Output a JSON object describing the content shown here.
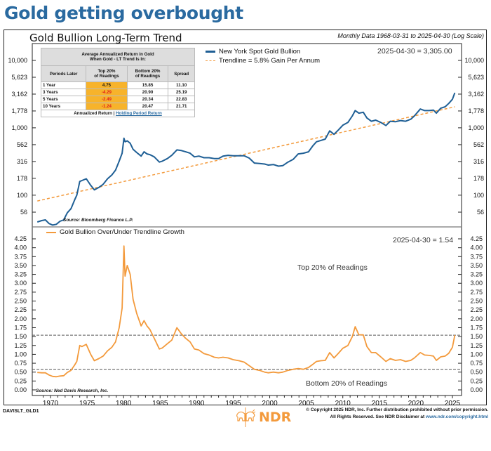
{
  "headline": "Gold getting overbought",
  "chart_title": "Gold Bullion Long-Term Trend",
  "subtitle": "Monthly Data 1968-03-31 to 2025-04-30 (Log Scale)",
  "colors": {
    "headline": "#2a6aa0",
    "gold_line": "#1f5f95",
    "trendline": "#f39a3c",
    "ratio_line": "#f39a3c",
    "highlight_cell": "#f7b32b",
    "negative_text": "#e0201a",
    "threshold_line": "#555555"
  },
  "returns_table": {
    "title_line1": "Average Annualized Return in Gold",
    "title_line2": "When Gold - LT Trend Is In:",
    "columns": [
      "Periods Later",
      "Top 20% of Readings",
      "Bottom 20% of Readings",
      "Spread"
    ],
    "col1_line1": "Top 20%",
    "col1_line2": "of Readings",
    "col2_line1": "Bottom 20%",
    "col2_line2": "of Readings",
    "rows": [
      {
        "period": "1 Year",
        "top": "4.75",
        "bottom": "15.85",
        "spread": "11.10"
      },
      {
        "period": "3 Years",
        "top": "-4.29",
        "bottom": "20.90",
        "spread": "25.19"
      },
      {
        "period": "5 Years",
        "top": "-2.49",
        "bottom": "20.34",
        "spread": "22.83"
      },
      {
        "period": "10 Years",
        "top": "-1.24",
        "bottom": "20.47",
        "spread": "21.71"
      }
    ],
    "footer_text": "Annualized Return | ",
    "footer_link": "Holding Period Return"
  },
  "legend_upper": {
    "series1": "New York Spot Gold Bullion",
    "series2": "Trendline = 5.8% Gain Per Annum"
  },
  "upper_latest": "2025-04-30 = 3,305.00",
  "upper_source": "Source: Bloomberg Finance L.P.",
  "legend_lower": "Gold Bullion Over/Under Trendline Growth",
  "lower_latest": "2025-04-30 = 1.54",
  "top_band_label": "Top 20% of Readings",
  "bottom_band_label": "Bottom 20% of Readings",
  "lower_source": "Source: Ned Davis Research, Inc.",
  "footer_id": "DAVISLT_GLD1",
  "copyright_line1": "© Copyright 2025 NDR, Inc. Further distribution prohibited without prior permission.",
  "copyright_line2": "All Rights Reserved. See NDR Disclaimer at ",
  "copyright_link": "www.ndr.com/copyright.html",
  "logo_text": "NDR",
  "chart_data": [
    {
      "type": "line",
      "title": "Gold Bullion Long-Term Trend",
      "yscale": "log",
      "yticks": [
        56,
        100,
        178,
        316,
        562,
        1000,
        1778,
        3162,
        5623,
        10000
      ],
      "ytick_labels": [
        "56",
        "100",
        "178",
        "316",
        "562",
        "1,000",
        "1,778",
        "3,162",
        "5,623",
        "10,000"
      ],
      "ylim": [
        42,
        14000
      ],
      "xlim": [
        1968.2,
        2025.4
      ],
      "xticks": [
        1970,
        1975,
        1980,
        1985,
        1990,
        1995,
        2000,
        2005,
        2010,
        2015,
        2020,
        2025
      ],
      "series": [
        {
          "name": "New York Spot Gold Bullion",
          "x": [
            1968.2,
            1968.8,
            1969.3,
            1969.8,
            1970.3,
            1970.8,
            1971.3,
            1971.8,
            1972.3,
            1972.8,
            1973.3,
            1973.6,
            1974.0,
            1974.3,
            1974.9,
            1975.5,
            1976.0,
            1976.6,
            1977.2,
            1977.8,
            1978.4,
            1978.9,
            1979.4,
            1979.8,
            1980.05,
            1980.2,
            1980.5,
            1980.9,
            1981.3,
            1981.8,
            1982.4,
            1982.8,
            1983.2,
            1983.6,
            1984.2,
            1984.9,
            1985.3,
            1986.0,
            1986.6,
            1987.3,
            1987.9,
            1988.5,
            1989.1,
            1989.7,
            1990.3,
            1991.0,
            1991.7,
            1992.4,
            1993.0,
            1993.6,
            1994.3,
            1995.0,
            1995.8,
            1996.5,
            1997.2,
            1997.9,
            1998.6,
            1999.3,
            1999.8,
            2000.5,
            2001.2,
            2001.8,
            2002.5,
            2003.2,
            2003.9,
            2004.6,
            2005.3,
            2005.9,
            2006.4,
            2007.0,
            2007.6,
            2008.2,
            2008.8,
            2009.4,
            2010.0,
            2010.7,
            2011.3,
            2011.7,
            2012.2,
            2012.8,
            2013.3,
            2013.9,
            2014.5,
            2015.2,
            2015.9,
            2016.5,
            2017.2,
            2017.9,
            2018.6,
            2019.3,
            2019.8,
            2020.6,
            2021.2,
            2021.8,
            2022.4,
            2022.8,
            2023.4,
            2024.0,
            2024.5,
            2025.0,
            2025.33
          ],
          "values": [
            40,
            42,
            43,
            38,
            36,
            37,
            41,
            43,
            55,
            63,
            85,
            100,
            160,
            165,
            175,
            140,
            120,
            130,
            145,
            175,
            200,
            235,
            320,
            420,
            700,
            620,
            640,
            590,
            480,
            430,
            380,
            440,
            410,
            400,
            370,
            310,
            320,
            350,
            390,
            470,
            460,
            440,
            420,
            370,
            380,
            360,
            360,
            350,
            350,
            380,
            390,
            385,
            385,
            385,
            355,
            300,
            295,
            290,
            280,
            285,
            270,
            275,
            310,
            340,
            410,
            420,
            440,
            540,
            620,
            650,
            680,
            900,
            800,
            930,
            1090,
            1200,
            1500,
            1800,
            1650,
            1700,
            1400,
            1250,
            1300,
            1200,
            1080,
            1250,
            1230,
            1280,
            1250,
            1340,
            1500,
            1900,
            1800,
            1800,
            1830,
            1650,
            1950,
            2050,
            2300,
            2650,
            3305
          ]
        },
        {
          "name": "Trendline = 5.8% Gain Per Annum",
          "style": "dashed",
          "x": [
            1968.2,
            2025.33
          ],
          "values": [
            82,
            2050
          ],
          "growth_rate_pct_per_year": 5.8
        }
      ],
      "latest_annotation": "2025-04-30 = 3,305.00",
      "legend_position": "top-center"
    },
    {
      "type": "line",
      "title": "Gold Bullion Over/Under Trendline Growth",
      "yticks": [
        0.0,
        0.25,
        0.5,
        0.75,
        1.0,
        1.25,
        1.5,
        1.75,
        2.0,
        2.25,
        2.5,
        2.75,
        3.0,
        3.25,
        3.5,
        3.75,
        4.0,
        4.25
      ],
      "ytick_labels": [
        "0.00",
        "0.25",
        "0.50",
        "0.75",
        "1.00",
        "1.25",
        "1.50",
        "1.75",
        "2.00",
        "2.25",
        "2.50",
        "2.75",
        "3.00",
        "3.25",
        "3.50",
        "3.75",
        "4.00",
        "4.25"
      ],
      "ylim": [
        0.0,
        4.25
      ],
      "xlim": [
        1968.2,
        2025.4
      ],
      "xticks": [
        1970,
        1975,
        1980,
        1985,
        1990,
        1995,
        2000,
        2005,
        2010,
        2015,
        2020,
        2025
      ],
      "thresholds": [
        {
          "label": "Top 20% of Readings",
          "value": 1.54
        },
        {
          "label": "Bottom 20% of Readings",
          "value": 0.58
        }
      ],
      "series": [
        {
          "name": "Gold Bullion Over/Under Trendline Growth",
          "x": [
            1968.2,
            1968.8,
            1969.3,
            1969.8,
            1970.3,
            1970.8,
            1971.3,
            1971.8,
            1972.3,
            1972.8,
            1973.3,
            1973.6,
            1974.0,
            1974.3,
            1974.9,
            1975.5,
            1976.0,
            1976.6,
            1977.2,
            1977.8,
            1978.4,
            1978.9,
            1979.4,
            1979.8,
            1980.05,
            1980.2,
            1980.5,
            1980.9,
            1981.3,
            1981.8,
            1982.4,
            1982.8,
            1983.2,
            1983.6,
            1984.2,
            1984.9,
            1985.3,
            1986.0,
            1986.6,
            1987.3,
            1987.9,
            1988.5,
            1989.1,
            1989.7,
            1990.3,
            1991.0,
            1991.7,
            1992.4,
            1993.0,
            1993.6,
            1994.3,
            1995.0,
            1995.8,
            1996.5,
            1997.2,
            1997.9,
            1998.6,
            1999.3,
            1999.8,
            2000.5,
            2001.2,
            2001.8,
            2002.5,
            2003.2,
            2003.9,
            2004.6,
            2005.3,
            2005.9,
            2006.4,
            2007.0,
            2007.6,
            2008.2,
            2008.8,
            2009.4,
            2010.0,
            2010.7,
            2011.3,
            2011.7,
            2012.2,
            2012.8,
            2013.3,
            2013.9,
            2014.5,
            2015.2,
            2015.9,
            2016.5,
            2017.2,
            2017.9,
            2018.6,
            2019.3,
            2019.8,
            2020.6,
            2021.2,
            2021.8,
            2022.4,
            2022.8,
            2023.4,
            2024.0,
            2024.5,
            2025.0,
            2025.33
          ],
          "values": [
            0.49,
            0.48,
            0.48,
            0.42,
            0.38,
            0.37,
            0.39,
            0.4,
            0.49,
            0.55,
            0.7,
            0.8,
            1.25,
            1.22,
            1.28,
            1.0,
            0.82,
            0.88,
            0.95,
            1.1,
            1.2,
            1.35,
            1.75,
            2.3,
            4.05,
            3.2,
            3.5,
            3.25,
            2.55,
            2.15,
            1.8,
            1.95,
            1.8,
            1.7,
            1.45,
            1.15,
            1.18,
            1.3,
            1.4,
            1.75,
            1.58,
            1.45,
            1.35,
            1.15,
            1.12,
            1.02,
            0.98,
            0.92,
            0.9,
            0.92,
            0.9,
            0.85,
            0.82,
            0.78,
            0.68,
            0.58,
            0.55,
            0.5,
            0.48,
            0.5,
            0.48,
            0.5,
            0.55,
            0.58,
            0.6,
            0.58,
            0.63,
            0.72,
            0.8,
            0.82,
            0.83,
            1.05,
            0.9,
            1.03,
            1.17,
            1.25,
            1.5,
            1.78,
            1.55,
            1.55,
            1.22,
            1.05,
            1.05,
            0.93,
            0.8,
            0.88,
            0.83,
            0.85,
            0.8,
            0.83,
            0.9,
            1.05,
            0.98,
            0.97,
            0.95,
            0.83,
            0.93,
            0.95,
            1.03,
            1.2,
            1.54
          ]
        }
      ],
      "latest_annotation": "2025-04-30 = 1.54",
      "legend_position": "top-left"
    }
  ]
}
